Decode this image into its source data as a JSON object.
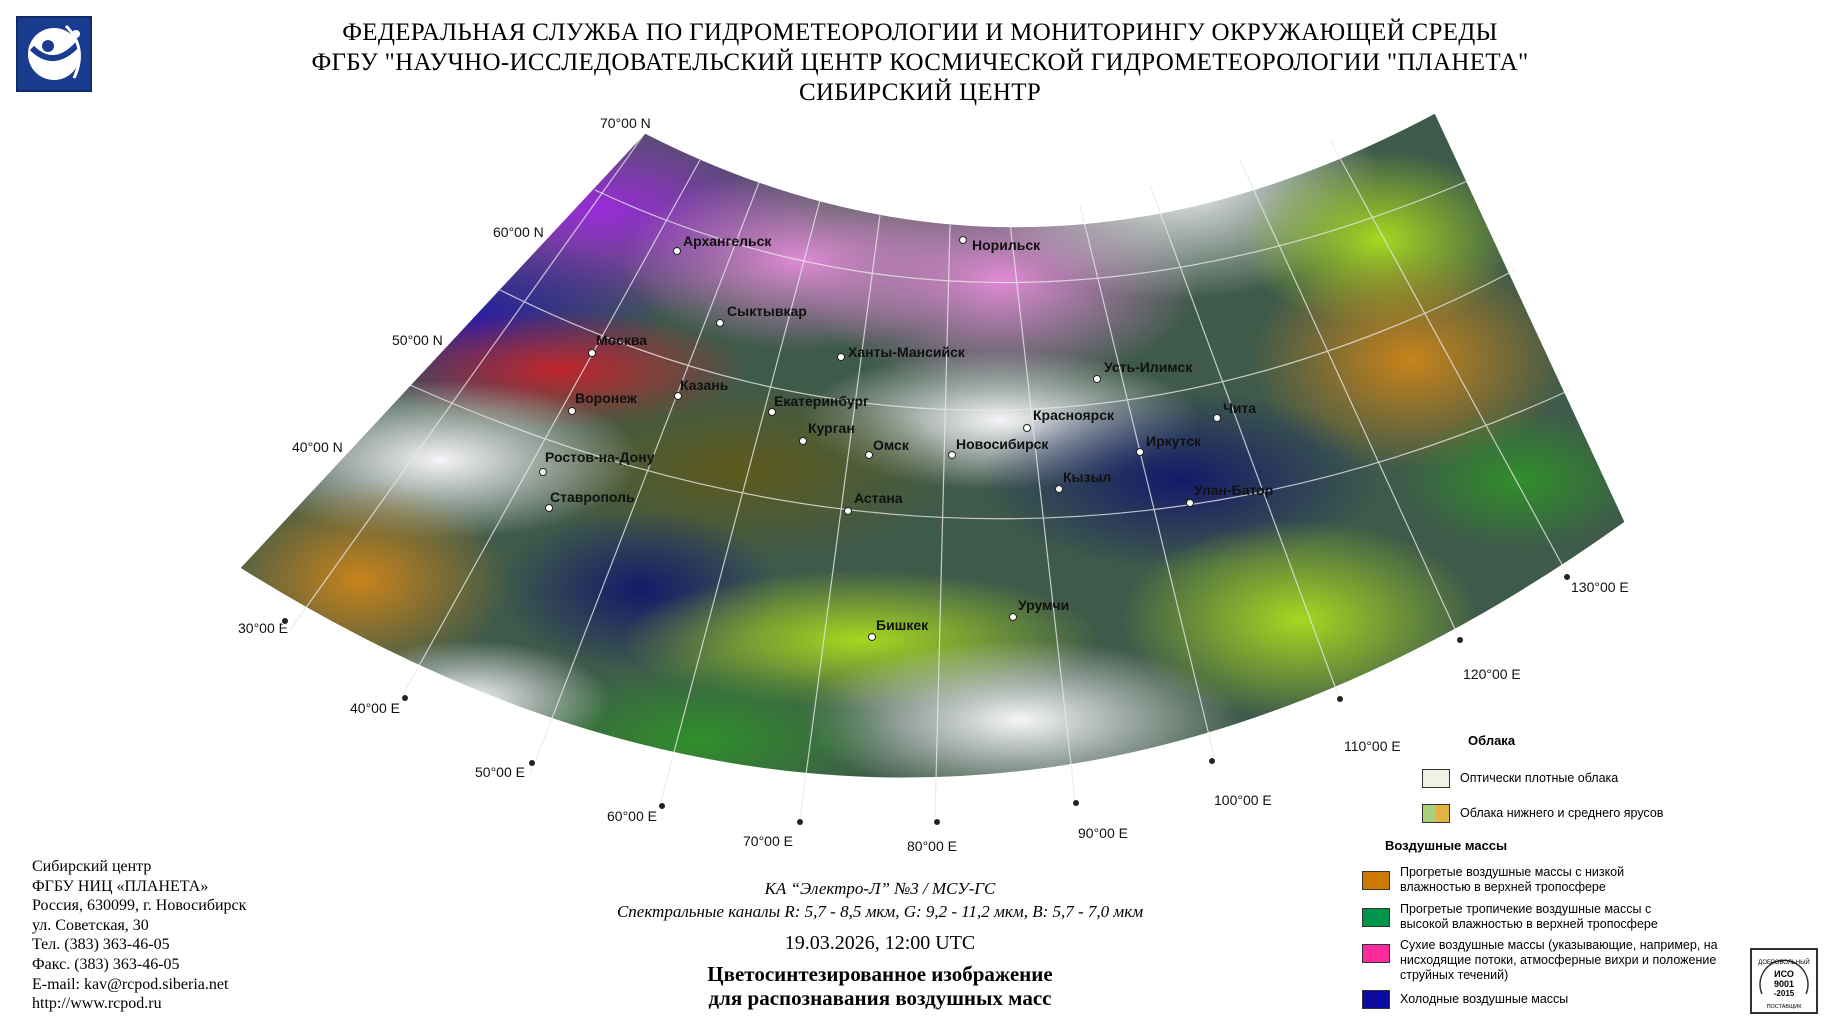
{
  "header": {
    "line1": "ФЕДЕРАЛЬНАЯ СЛУЖБА ПО ГИДРОМЕТЕОРОЛОГИИ И МОНИТОРИНГУ ОКРУЖАЮЩЕЙ СРЕДЫ",
    "line2": "ФГБУ \"НАУЧНО-ИССЛЕДОВАТЕЛЬСКИЙ ЦЕНТР КОСМИЧЕСКОЙ ГИДРОМЕТЕОРОЛОГИИ \"ПЛАНЕТА\"",
    "line3": "СИБИРСКИЙ ЦЕНТР"
  },
  "map": {
    "latitude_labels": [
      "70°00 N",
      "60°00 N",
      "50°00 N",
      "40°00 N"
    ],
    "longitude_labels": [
      "30°00 E",
      "40°00 E",
      "50°00 E",
      "60°00 E",
      "70°00 E",
      "80°00 E",
      "90°00 E",
      "100°00 E",
      "110°00 E",
      "120°00 E",
      "130°00 E"
    ],
    "cities": [
      "Архангельск",
      "Норильск",
      "Сыктывкар",
      "Ханты-Мансийск",
      "Москва",
      "Казань",
      "Усть-Илимск",
      "Воронеж",
      "Екатеринбург",
      "Красноярск",
      "Чита",
      "Курган",
      "Омск",
      "Новосибирск",
      "Иркутск",
      "Ростов-на-Дону",
      "Кызыл",
      "Улан-Батор",
      "Ставрополь",
      "Астана",
      "Урумчи",
      "Бишкек"
    ]
  },
  "legend": {
    "clouds_title": "Облака",
    "clouds": [
      {
        "label": "Оптически плотные облака",
        "colors": [
          "#f2f1e6"
        ]
      },
      {
        "label": "Облака нижнего и среднего ярусов",
        "colors": [
          "#a9cf7a",
          "#e0b440"
        ]
      }
    ],
    "airmass_title": "Воздушные массы",
    "airmasses": [
      {
        "label": "Прогретые воздушные массы с низкой влажностью в верхней тропосфере",
        "colors": [
          "#cc7a00"
        ]
      },
      {
        "label": "Прогретые тропичекие воздушные массы с высокой влажностью в верхней тропосфере",
        "colors": [
          "#00944a"
        ]
      },
      {
        "label": "Сухие воздушные массы (указывающие, например, на нисходящие потоки, атмосферные вихри и положение струйных течений)",
        "colors": [
          "#ff2a9e"
        ]
      },
      {
        "label": "Холодные воздушные массы",
        "colors": [
          "#0a0aa0"
        ]
      }
    ]
  },
  "contact": {
    "line1": "Сибирский центр",
    "line2": "ФГБУ НИЦ «ПЛАНЕТА»",
    "line3": "Россия, 630099, г. Новосибирск",
    "line4": "ул. Советская, 30",
    "line5": "Тел. (383) 363-46-05",
    "line6": "Факс. (383) 363-46-05",
    "line7": "E-mail: kav@rcpod.siberia.net",
    "line8": "http://www.rcpod.ru"
  },
  "caption": {
    "satellite": "КА “Электро-Л” №3 / МСУ-ГС",
    "channels": "Спектральные каналы R: 5,7 - 8,5 мкм, G: 9,2 - 11,2 мкм, B: 5,7 - 7,0 мкм",
    "datetime": "19.03.2026, 12:00 UTC",
    "title1": "Цветосинтезированное изображение",
    "title2": "для распознавания воздушных масс"
  },
  "certificate": {
    "text1": "ДОБРОВОЛЬНЫЙ",
    "text2": "ИСО",
    "text3": "9001",
    "text4": "-2015",
    "text5": "ПОСТАВЩИК"
  }
}
